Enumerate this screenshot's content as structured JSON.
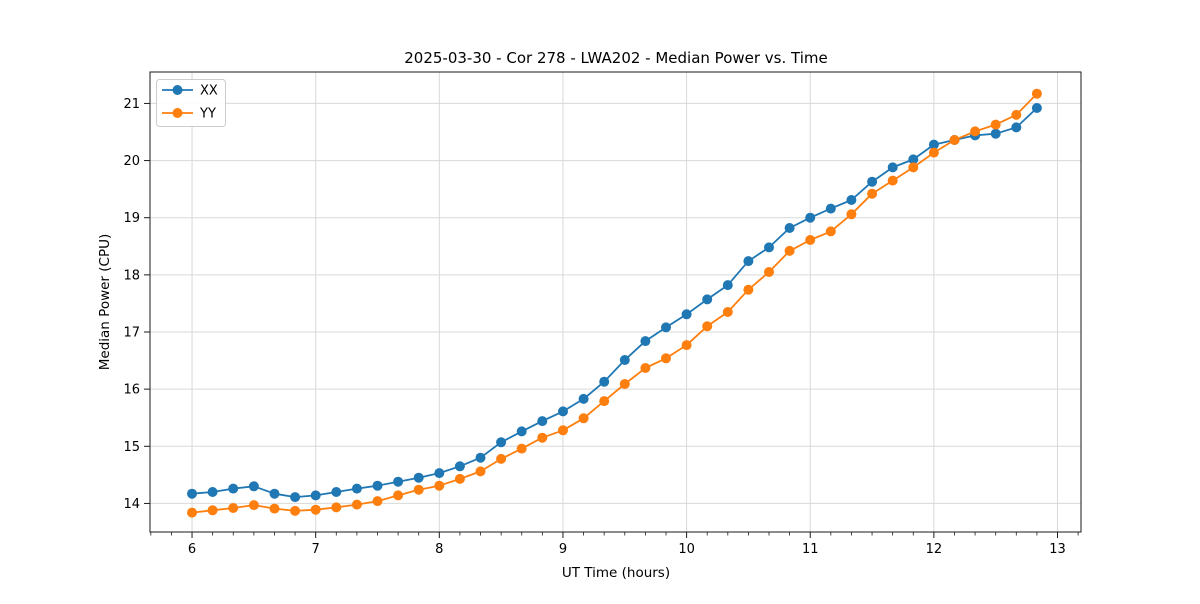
{
  "chart_data": {
    "type": "line",
    "title": "2025-03-30 - Cor 278 - LWA202 - Median Power vs. Time",
    "xlabel": "UT Time (hours)",
    "ylabel": "Median Power (CPU)",
    "xlim": [
      5.66,
      13.19
    ],
    "ylim": [
      13.5,
      21.55
    ],
    "xticks": [
      6,
      7,
      8,
      9,
      10,
      11,
      12,
      13
    ],
    "yticks": [
      14,
      15,
      16,
      17,
      18,
      19,
      20,
      21
    ],
    "x_minor_interval": 0.1666667,
    "grid": true,
    "grid_color": "#d9d9d9",
    "spine_color": "#1a1a1a",
    "legend_position": "upper-left",
    "x": [
      6.0,
      6.1667,
      6.3333,
      6.5,
      6.6667,
      6.8333,
      7.0,
      7.1667,
      7.3333,
      7.5,
      7.6667,
      7.8333,
      8.0,
      8.1667,
      8.3333,
      8.5,
      8.6667,
      8.8333,
      9.0,
      9.1667,
      9.3333,
      9.5,
      9.6667,
      9.8333,
      10.0,
      10.1667,
      10.3333,
      10.5,
      10.6667,
      10.8333,
      11.0,
      11.1667,
      11.3333,
      11.5,
      11.6667,
      11.8333,
      12.0,
      12.1667,
      12.3333,
      12.5,
      12.6667,
      12.8333
    ],
    "series": [
      {
        "name": "XX",
        "color": "#1f77b4",
        "values": [
          14.17,
          14.2,
          14.26,
          14.3,
          14.17,
          14.11,
          14.14,
          14.2,
          14.26,
          14.31,
          14.38,
          14.45,
          14.53,
          14.65,
          14.8,
          15.07,
          15.26,
          15.44,
          15.61,
          15.83,
          16.13,
          16.51,
          16.84,
          17.08,
          17.31,
          17.57,
          17.82,
          18.24,
          18.48,
          18.82,
          19.0,
          19.16,
          19.31,
          19.63,
          19.88,
          20.02,
          20.28,
          20.36,
          20.44,
          20.47,
          20.58,
          20.92
        ]
      },
      {
        "name": "YY",
        "color": "#ff7f0e",
        "values": [
          13.84,
          13.88,
          13.92,
          13.97,
          13.91,
          13.87,
          13.89,
          13.93,
          13.98,
          14.04,
          14.14,
          14.24,
          14.31,
          14.43,
          14.56,
          14.78,
          14.96,
          15.15,
          15.28,
          15.49,
          15.79,
          16.09,
          16.37,
          16.54,
          16.77,
          17.1,
          17.35,
          17.74,
          18.05,
          18.42,
          18.61,
          18.76,
          19.06,
          19.42,
          19.65,
          19.88,
          20.14,
          20.36,
          20.51,
          20.63,
          20.8,
          21.17
        ]
      }
    ]
  }
}
